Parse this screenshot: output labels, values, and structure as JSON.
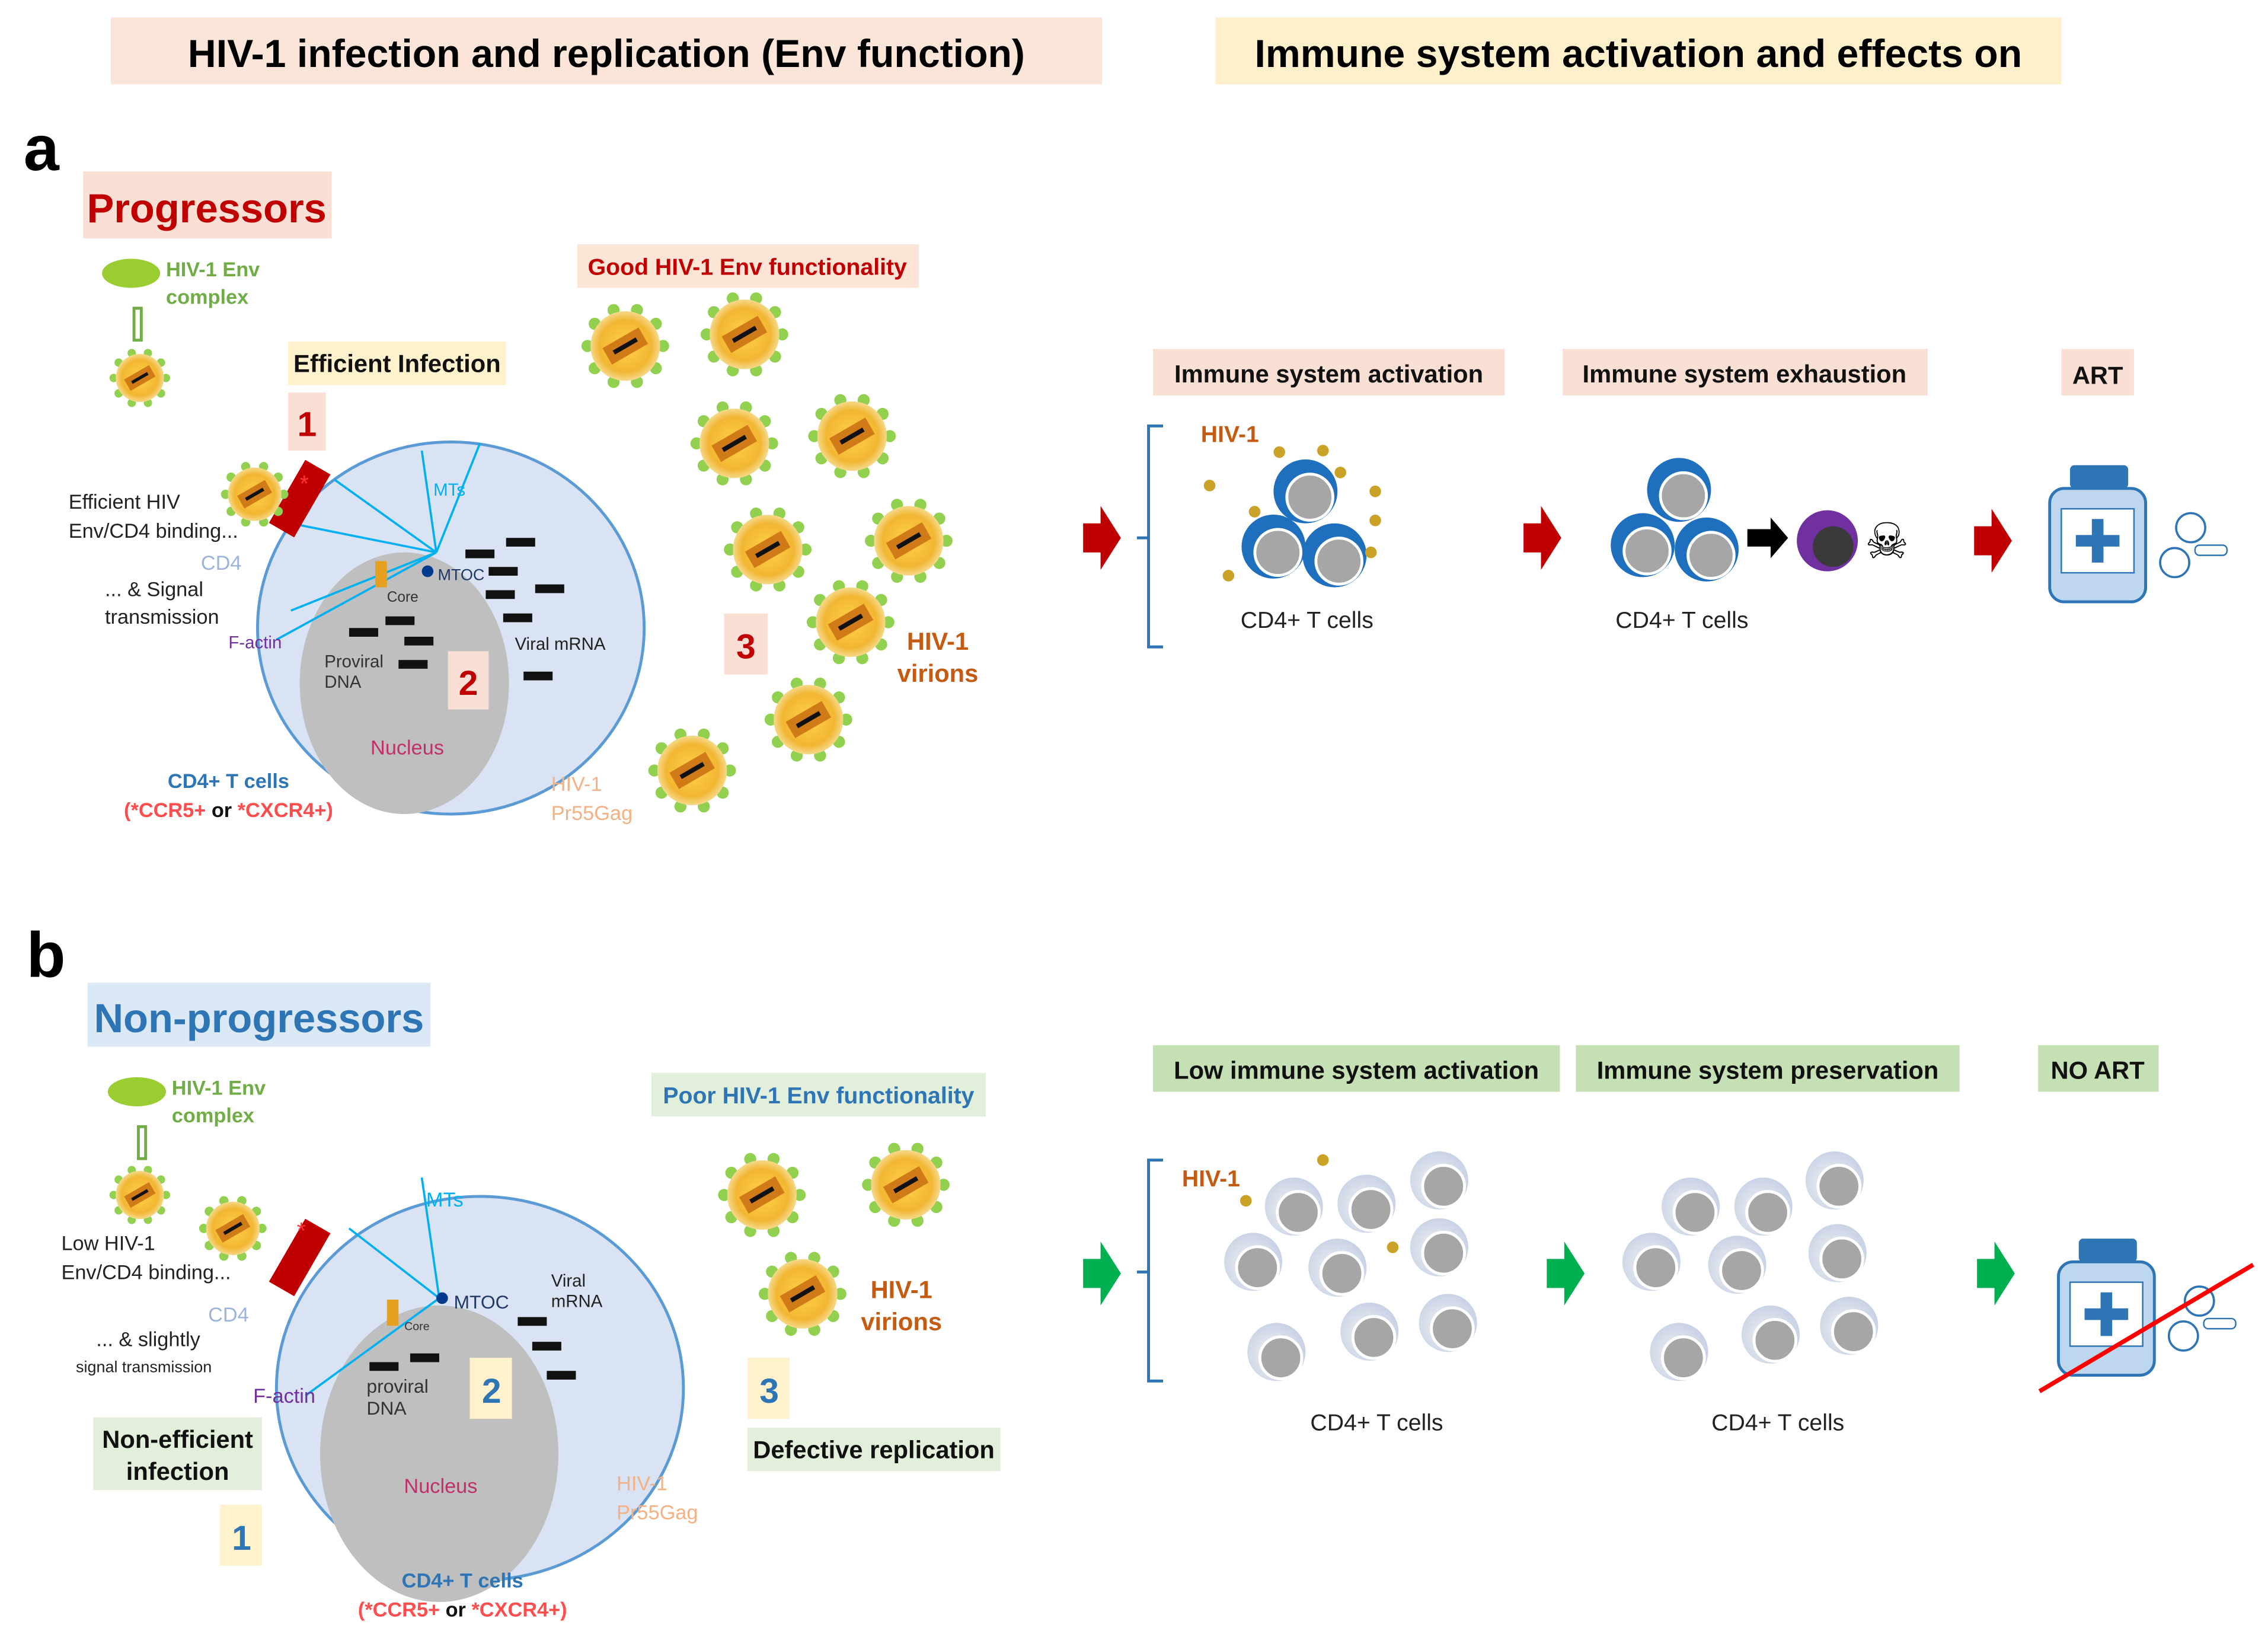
{
  "headers": {
    "left": "HIV-1 infection and replication (Env function)",
    "right": "Immune system activation and effects on"
  },
  "panel_a": {
    "letter": "a",
    "group": "Progressors",
    "env_complex": [
      "HIV-1 Env",
      "complex"
    ],
    "step1_label": "Efficient Infection",
    "step1_num": "1",
    "binding": [
      "Efficient HIV",
      "Env/CD4 binding..."
    ],
    "cd4": "CD4",
    "signal": [
      "... & Signal",
      "transmission"
    ],
    "factin": "F-actin",
    "mts": "MTs",
    "mtoc": "MTOC",
    "core": "Core",
    "proviral": [
      "Proviral",
      "DNA"
    ],
    "step2_num": "2",
    "viral_mrna": "Viral mRNA",
    "nucleus": "Nucleus",
    "cell_label": "CD4+ T cells",
    "coreceptor": [
      "(*CCR5+",
      " or ",
      "*CXCR4+)"
    ],
    "gag": [
      "HIV-1",
      "Pr55Gag"
    ],
    "env_func": "Good HIV-1 Env functionality",
    "step3_num": "3",
    "virions": [
      "HIV-1",
      "virions"
    ],
    "immune": {
      "activation": "Immune system activation",
      "exhaustion": "Immune system exhaustion",
      "art": "ART",
      "hiv": "HIV-1",
      "cells1": "CD4+ T cells",
      "cells2": "CD4+ T cells"
    }
  },
  "panel_b": {
    "letter": "b",
    "group": "Non-progressors",
    "env_complex": [
      "HIV-1 Env",
      "complex"
    ],
    "binding": [
      "Low HIV-1",
      "Env/CD4 binding..."
    ],
    "cd4": "CD4",
    "signal": [
      "... & slightly",
      "signal transmission"
    ],
    "factin": "F-actin",
    "mts": "MTs",
    "mtoc": "MTOC",
    "core": "Core",
    "proviral": [
      "proviral",
      "DNA"
    ],
    "step2_num": "2",
    "viral_mrna": [
      "Viral",
      "mRNA"
    ],
    "nucleus": "Nucleus",
    "step1_label": [
      "Non-efficient",
      "infection"
    ],
    "step1_num": "1",
    "cell_label": "CD4+ T cells",
    "coreceptor": [
      "(*CCR5+",
      " or ",
      "*CXCR4+)"
    ],
    "gag": [
      "HIV-1",
      "Pr55Gag"
    ],
    "env_func": "Poor HIV-1 Env functionality",
    "step3_num": "3",
    "step3_label": "Defective replication",
    "virions": [
      "HIV-1",
      "virions"
    ],
    "immune": {
      "activation": "Low immune system activation",
      "preservation": "Immune system preservation",
      "art": "NO ART",
      "hiv": "HIV-1",
      "cells1": "CD4+ T cells",
      "cells2": "CD4+ T cells"
    }
  },
  "colors": {
    "progressor_red": "#c00000",
    "nonprogressor_blue": "#2e75b6",
    "arrow_red": "#c00000",
    "arrow_green": "#00b050",
    "cell_fill": "#dae3f3",
    "virion_orange": "#e8a020"
  },
  "icons": [
    "virion-icon",
    "env-complex-icon",
    "cd4-t-cell-icon",
    "skull-icon",
    "medicine-bottle-icon",
    "pill-icon",
    "arrow-right-icon"
  ]
}
